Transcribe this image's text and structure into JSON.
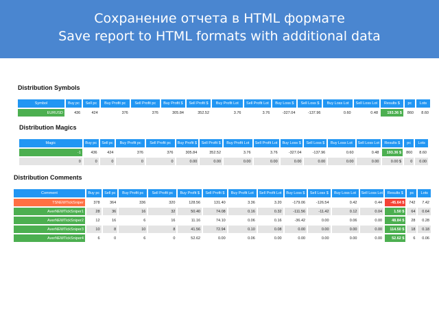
{
  "banner": {
    "line1": "Сохранение отчета в HTML формате",
    "line2": "Save report to HTML formats with additional data"
  },
  "colors": {
    "banner": "#4a86d0",
    "header": "#2196f3",
    "green": "#4caf50",
    "orange": "#ff7043",
    "red": "#f44336",
    "grey": "#e4e4e4"
  },
  "symbols": {
    "title": "Distribution Symbols",
    "headers": [
      "Symbol",
      "Buy pc",
      "Sell pc",
      "Buy Profit pc",
      "Sell Profit pc",
      "Buy Profit $",
      "Sell Profit $",
      "Buy Profit Lot",
      "Sell Profit Lot",
      "Buy Loss $",
      "Sell Loss $",
      "Buy Loss Lot",
      "Sell Loss Lot",
      "Results $",
      "pc",
      "Lots"
    ],
    "rows": [
      {
        "style": "white",
        "label_style": "green",
        "result_style": "res-green",
        "cells": [
          "EURUSD",
          "436",
          "424",
          "376",
          "376",
          "305.84",
          "352.52",
          "3.76",
          "3.76",
          "-327.04",
          "-137.96",
          "0.60",
          "0.48",
          "193.36 $",
          "860",
          "8.60"
        ]
      }
    ]
  },
  "magics": {
    "title": "Distribution Magics",
    "headers": [
      "Magic",
      "Buy pc",
      "Sell pc",
      "Buy Profit pc",
      "Sell Profit pc",
      "Buy Profit $",
      "Sell Profit $",
      "Buy Profit Lot",
      "Sell Profit Lot",
      "Buy Loss $",
      "Sell Loss $",
      "Buy Loss Lot",
      "Sell Loss Lot",
      "Results $",
      "pc",
      "Lots"
    ],
    "rows": [
      {
        "style": "white",
        "label_style": "green",
        "result_style": "res-green",
        "cells": [
          "-1",
          "436",
          "424",
          "376",
          "376",
          "305.84",
          "352.52",
          "3.76",
          "3.76",
          "-327.04",
          "-137.96",
          "0.60",
          "0.48",
          "193.36 $",
          "860",
          "8.60"
        ]
      },
      {
        "style": "grey",
        "label_style": "grey",
        "result_style": "grey",
        "cells": [
          "0",
          "0",
          "0",
          "0",
          "0",
          "0.00",
          "0.00",
          "0.00",
          "0.00",
          "0.00",
          "0.00",
          "0.00",
          "0.00",
          "0.00 $",
          "0",
          "0.00"
        ]
      }
    ]
  },
  "comments": {
    "title": "Distribution Comments",
    "headers": [
      "Comment",
      "Buy pc",
      "Sell pc",
      "Buy Profit pc",
      "Sell Profit pc",
      "Buy Profit $",
      "Sell Profit $",
      "Buy Profit Lot",
      "Sell Profit Lot",
      "Buy Loss $",
      "Sell Loss $",
      "Buy Loss Lot",
      "Sell Loss Lot",
      "Results $",
      "pc",
      "Lots"
    ],
    "rows": [
      {
        "style": "white",
        "label_style": "orange",
        "result_style": "res-red",
        "cells": [
          "TSNEWTickSniper",
          "378",
          "364",
          "336",
          "320",
          "128.56",
          "131.40",
          "3.36",
          "3.20",
          "-179.06",
          "-126.54",
          "0.42",
          "0.44",
          "-45.64 $",
          "742",
          "7.42"
        ]
      },
      {
        "style": "grey",
        "label_style": "green",
        "result_style": "res-green",
        "cells": [
          "AverNEWTickSniper1",
          "28",
          "36",
          "16",
          "32",
          "50.40",
          "74.08",
          "0.16",
          "0.32",
          "-111.56",
          "-11.42",
          "0.12",
          "0.04",
          "1.50 $",
          "64",
          "0.64"
        ]
      },
      {
        "style": "white",
        "label_style": "green",
        "result_style": "res-green",
        "cells": [
          "AverNEWTickSniper2",
          "12",
          "16",
          "6",
          "16",
          "11.16",
          "74.10",
          "0.06",
          "0.16",
          "-36.42",
          "0.00",
          "0.06",
          "0.00",
          "48.84 $",
          "28",
          "0.28"
        ]
      },
      {
        "style": "grey",
        "label_style": "green",
        "result_style": "res-green",
        "cells": [
          "AverNEWTickSniper3",
          "10",
          "8",
          "10",
          "8",
          "41.56",
          "72.94",
          "0.10",
          "0.08",
          "0.00",
          "0.00",
          "0.00",
          "0.00",
          "114.50 $",
          "18",
          "0.18"
        ]
      },
      {
        "style": "white",
        "label_style": "green",
        "result_style": "res-green",
        "cells": [
          "AverNEWTickSniper4",
          "6",
          "0",
          "6",
          "0",
          "52.62",
          "0.00",
          "0.06",
          "0.00",
          "0.00",
          "0.00",
          "0.00",
          "0.00",
          "52.62 $",
          "6",
          "0.06"
        ]
      }
    ]
  }
}
